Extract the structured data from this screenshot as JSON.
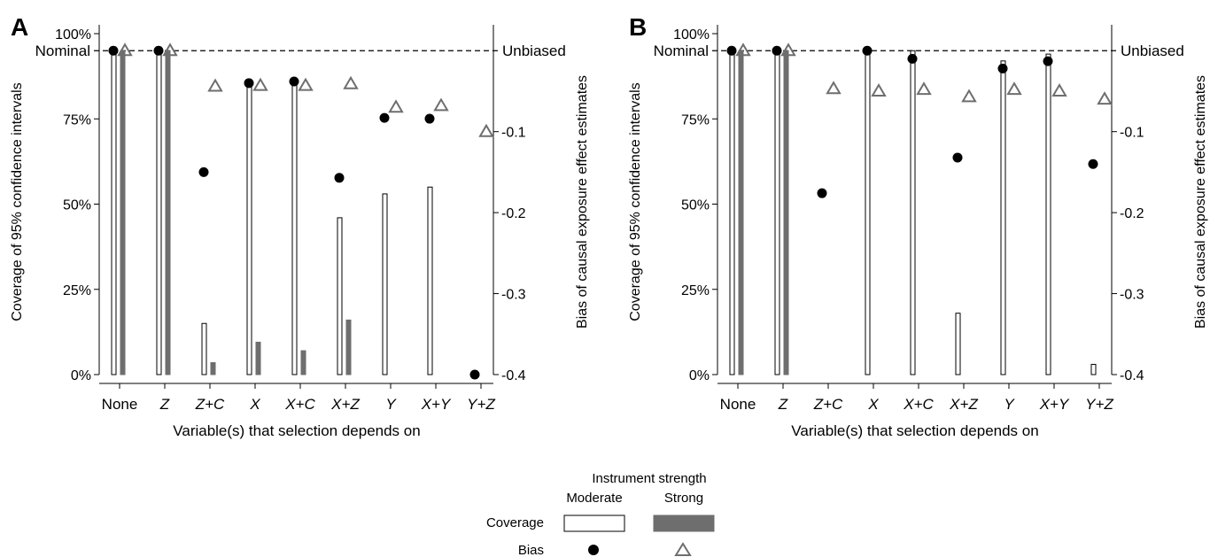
{
  "shared": {
    "xlabel": "Variable(s) that selection depends on",
    "ylabel_left": "Coverage of 95% confidence intervals",
    "ylabel_right": "Bias of causal exposure effect estimates",
    "left_ticks": [
      "0%",
      "25%",
      "50%",
      "75%",
      "100%"
    ],
    "right_ticks": [
      "-0.4",
      "-0.3",
      "-0.2",
      "-0.1"
    ],
    "nominal_label": "Nominal",
    "unbiased_label": "Unbiased",
    "categories": [
      "None",
      "Z",
      "Z+C",
      "X",
      "X+C",
      "X+Z",
      "Y",
      "X+Y",
      "Y+Z"
    ]
  },
  "legend": {
    "title": "Instrument strength",
    "moderate": "Moderate",
    "strong": "Strong",
    "coverage": "Coverage",
    "bias": "Bias",
    "colors": {
      "moderate_fill": "#ffffff",
      "strong_fill": "#6e6e6e",
      "dot": "#000000",
      "triangle": "#6e6e6e"
    }
  },
  "chart_data": [
    {
      "panel": "A",
      "type": "bar",
      "categories": [
        "None",
        "Z",
        "Z+C",
        "X",
        "X+C",
        "X+Z",
        "Y",
        "X+Y",
        "Y+Z"
      ],
      "ylim": [
        0,
        100
      ],
      "y2lim": [
        -0.4,
        0.0
      ],
      "nominal": 95,
      "series": [
        {
          "name": "Coverage Moderate",
          "kind": "bar",
          "values": [
            95,
            95,
            15,
            86,
            86,
            46,
            53,
            55,
            null
          ]
        },
        {
          "name": "Coverage Strong",
          "kind": "bar",
          "values": [
            95,
            95,
            3.5,
            9.5,
            7,
            16,
            null,
            null,
            null
          ]
        },
        {
          "name": "Bias Moderate",
          "kind": "dot",
          "values": [
            0,
            0,
            -0.15,
            -0.04,
            -0.038,
            -0.157,
            -0.083,
            -0.084,
            -0.4
          ]
        },
        {
          "name": "Bias Strong",
          "kind": "triangle",
          "values": [
            0,
            0,
            -0.044,
            -0.043,
            -0.043,
            -0.041,
            -0.07,
            -0.068,
            -0.1
          ]
        }
      ]
    },
    {
      "panel": "B",
      "type": "bar",
      "categories": [
        "None",
        "Z",
        "Z+C",
        "X",
        "X+C",
        "X+Z",
        "Y",
        "X+Y",
        "Y+Z"
      ],
      "ylim": [
        0,
        100
      ],
      "y2lim": [
        -0.4,
        0.0
      ],
      "nominal": 95,
      "series": [
        {
          "name": "Coverage Moderate",
          "kind": "bar",
          "values": [
            95,
            95,
            null,
            95,
            95,
            18,
            92,
            94,
            3
          ]
        },
        {
          "name": "Coverage Strong",
          "kind": "bar",
          "values": [
            95,
            95,
            null,
            null,
            null,
            null,
            null,
            null,
            null
          ]
        },
        {
          "name": "Bias Moderate",
          "kind": "dot",
          "values": [
            0,
            0,
            -0.176,
            0,
            -0.01,
            -0.132,
            -0.022,
            -0.013,
            -0.14
          ]
        },
        {
          "name": "Bias Strong",
          "kind": "triangle",
          "values": [
            0,
            0,
            -0.047,
            -0.05,
            -0.048,
            -0.057,
            -0.048,
            -0.05,
            -0.06
          ]
        }
      ]
    }
  ]
}
